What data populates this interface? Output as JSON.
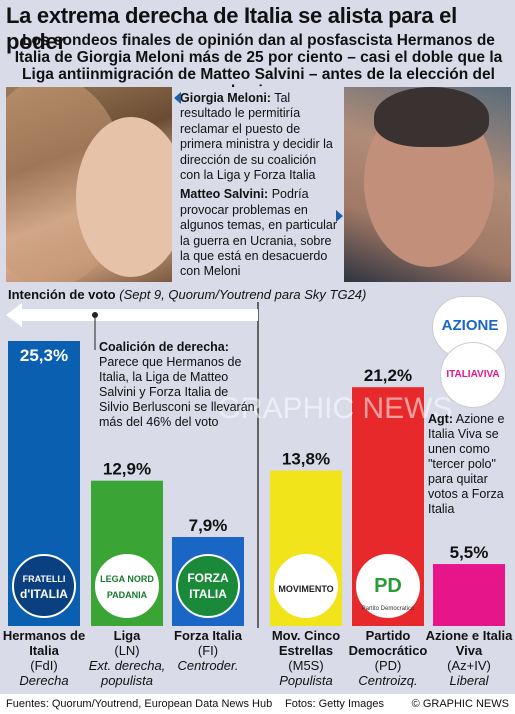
{
  "title": "La extrema derecha de Italia se alista para el poder",
  "subtitle": "Los sondeos finales de opinión dan al posfascista Hermanos de Italia de Giorgia Meloni más de 25 por ciento – casi el doble que la Liga antiinmigración de Matteo Salvini – antes de la elección del domingo",
  "quotes": {
    "meloni_name": "Giorgia Meloni:",
    "meloni_text": "Tal resultado le permitiría reclamar el puesto de primera ministra y decidir la dirección de su coalición con la Liga y Forza Italia",
    "salvini_name": "Matteo Salvini:",
    "salvini_text": "Podría provocar problemas en algunos temas, en particular la guerra en Ucrania, sobre la que está en desacuerdo con Meloni"
  },
  "chart_header": {
    "label": "Intención de voto",
    "source_note": "(Sept 9, Quorum/Youtrend para Sky TG24)"
  },
  "coalition_note": {
    "heading": "Coalición de derecha:",
    "text": "Parece que Hermanos de Italia, la Liga de Matteo Salvini y Forza Italia de Silvio Berlusconi se llevarán más del 46% del voto"
  },
  "agt_note": {
    "heading": "Agt:",
    "text": "Azione e Italia Viva se unen como \"tercer polo\" para quitar votos a Forza Italia"
  },
  "chart_data": {
    "type": "bar",
    "title": "Intención de voto",
    "ylim": [
      0,
      30
    ],
    "categories": [
      "Hermanos de Italia",
      "Liga",
      "Forza Italia",
      "Mov. Cinco Estrellas",
      "Partido Democrático",
      "Azione e Italia Viva"
    ],
    "abbreviations": [
      "(FdI)",
      "(LN)",
      "(FI)",
      "(M5S)",
      "(PD)",
      "(Az+IV)"
    ],
    "descriptors": [
      "Derecha",
      "Ext. derecha, populista",
      "Centroder.",
      "Populista",
      "Centroizq.",
      "Liberal"
    ],
    "values": [
      25.3,
      12.9,
      7.9,
      13.8,
      21.2,
      5.5
    ],
    "value_labels": [
      "25,3%",
      "12,9%",
      "7,9%",
      "13,8%",
      "21,2%",
      "5,5%"
    ],
    "colors": [
      "#0a5fb0",
      "#3aa534",
      "#1a66c4",
      "#f2e41a",
      "#e8292b",
      "#e6158a"
    ],
    "logos": [
      "FRATELLI d'ITALIA",
      "LEGA NORD PADANIA",
      "FORZA ITALIA",
      "MOVIMENTO",
      "PD",
      "AZIONE / ITALIA VIVA"
    ]
  },
  "logo_text": {
    "fdi_1": "FRATELLI",
    "fdi_2": "d'ITALIA",
    "lega_1": "LEGA NORD",
    "lega_2": "PADANIA",
    "fi_1": "FORZA",
    "fi_2": "ITALIA",
    "m5s": "MOVIMENTO",
    "pd": "PD",
    "pd_sub": "Partito Democratico",
    "azione": "AZIONE",
    "italiaviva": "ITALIAVIVA"
  },
  "watermark": "GRAPHIC NEWS",
  "footer": {
    "sources": "Fuentes: Quorum/Youtrend, European Data News Hub",
    "photos": "Fotos: Getty Images",
    "credit": "© GRAPHIC NEWS"
  },
  "colors": {
    "background": "#d9dbe9",
    "arrow": "#ffffff"
  }
}
